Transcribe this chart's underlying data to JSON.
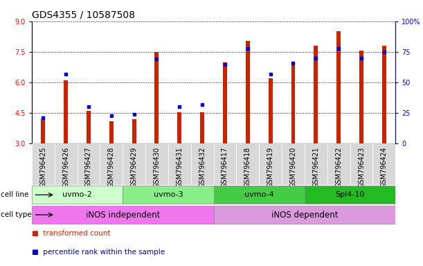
{
  "title": "GDS4355 / 10587508",
  "samples": [
    "GSM796425",
    "GSM796426",
    "GSM796427",
    "GSM796428",
    "GSM796429",
    "GSM796430",
    "GSM796431",
    "GSM796432",
    "GSM796417",
    "GSM796418",
    "GSM796419",
    "GSM796420",
    "GSM796421",
    "GSM796422",
    "GSM796423",
    "GSM796424"
  ],
  "transformed_count": [
    4.2,
    6.1,
    4.6,
    4.1,
    4.2,
    7.5,
    4.55,
    4.55,
    7.0,
    8.05,
    6.2,
    7.0,
    7.8,
    8.5,
    7.55,
    7.8
  ],
  "percentile_rank": [
    21,
    57,
    30,
    23,
    24,
    69,
    30,
    32,
    65,
    78,
    57,
    66,
    70,
    78,
    70,
    75
  ],
  "ylim_left": [
    3,
    9
  ],
  "ylim_right": [
    0,
    100
  ],
  "yticks_left": [
    3,
    4.5,
    6,
    7.5,
    9
  ],
  "yticks_right": [
    0,
    25,
    50,
    75,
    100
  ],
  "cell_lines": [
    {
      "label": "uvmo-2",
      "start": 0,
      "end": 4,
      "color": "#ccffcc"
    },
    {
      "label": "uvmo-3",
      "start": 4,
      "end": 8,
      "color": "#88ee88"
    },
    {
      "label": "uvmo-4",
      "start": 8,
      "end": 12,
      "color": "#44cc44"
    },
    {
      "label": "Spl4-10",
      "start": 12,
      "end": 16,
      "color": "#22bb22"
    }
  ],
  "cell_types": [
    {
      "label": "iNOS independent",
      "start": 0,
      "end": 8,
      "color": "#ee77ee"
    },
    {
      "label": "iNOS dependent",
      "start": 8,
      "end": 16,
      "color": "#dd99dd"
    }
  ],
  "bar_color": "#cc2200",
  "dot_color": "#0000cc",
  "bar_width": 0.18,
  "background_color": "#ffffff",
  "title_fontsize": 10,
  "tick_label_fontsize": 7,
  "small_fontsize": 7.5
}
